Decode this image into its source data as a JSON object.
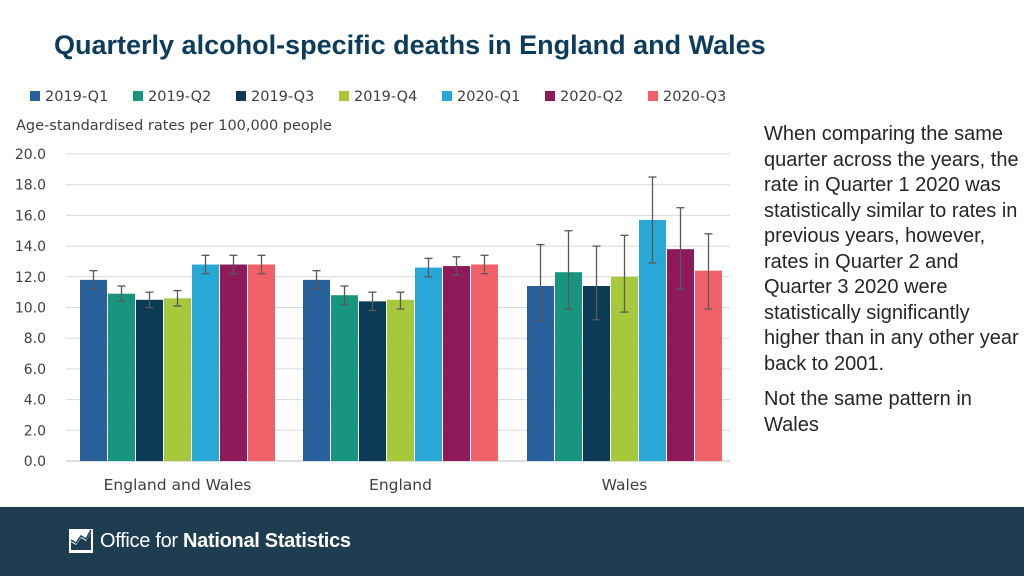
{
  "slide": {
    "title": "Quarterly alcohol-specific deaths in England and Wales"
  },
  "side_text": {
    "paragraph1": "When comparing the same quarter across the years, the rate in Quarter 1 2020 was statistically similar to rates in previous years, however, rates in Quarter 2 and Quarter 3 2020 were statistically significantly higher than in any other year back to 2001.",
    "paragraph2": "Not the same pattern in Wales"
  },
  "footer": {
    "logo_text_regular": "Office for ",
    "logo_text_bold": "National Statistics"
  },
  "colors": {
    "2019-Q1": "#27609a",
    "2019-Q2": "#17957f",
    "2019-Q3": "#0c3b55",
    "2019-Q4": "#a8c83c",
    "2020-Q1": "#27a8d6",
    "2020-Q2": "#8e1a5b",
    "2020-Q3": "#f2616a",
    "footer_bg": "#1e3d51",
    "title": "#0e3d5c"
  },
  "chart_data": {
    "type": "bar",
    "title": "",
    "ylabel": "Age-standardised rates per 100,000 people",
    "xlabel": "",
    "ylim": [
      0,
      20
    ],
    "yticks": [
      "0.0",
      "2.0",
      "4.0",
      "6.0",
      "8.0",
      "10.0",
      "12.0",
      "14.0",
      "16.0",
      "18.0",
      "20.0"
    ],
    "grid": true,
    "legend_position": "top",
    "categories": [
      "England and Wales",
      "England",
      "Wales"
    ],
    "series": [
      {
        "name": "2019-Q1",
        "values": [
          11.8,
          11.8,
          11.4
        ],
        "err_low": [
          11.2,
          11.2,
          9.1
        ],
        "err_high": [
          12.4,
          12.4,
          14.1
        ]
      },
      {
        "name": "2019-Q2",
        "values": [
          10.9,
          10.8,
          12.3
        ],
        "err_low": [
          10.4,
          10.2,
          9.9
        ],
        "err_high": [
          11.4,
          11.4,
          15.0
        ]
      },
      {
        "name": "2019-Q3",
        "values": [
          10.5,
          10.4,
          11.4
        ],
        "err_low": [
          10.0,
          9.8,
          9.2
        ],
        "err_high": [
          11.0,
          11.0,
          14.0
        ]
      },
      {
        "name": "2019-Q4",
        "values": [
          10.6,
          10.5,
          12.0
        ],
        "err_low": [
          10.1,
          9.9,
          9.7
        ],
        "err_high": [
          11.1,
          11.0,
          14.7
        ]
      },
      {
        "name": "2020-Q1",
        "values": [
          12.8,
          12.6,
          15.7
        ],
        "err_low": [
          12.2,
          12.0,
          12.9
        ],
        "err_high": [
          13.4,
          13.2,
          18.5
        ]
      },
      {
        "name": "2020-Q2",
        "values": [
          12.8,
          12.7,
          13.8
        ],
        "err_low": [
          12.2,
          12.1,
          11.2
        ],
        "err_high": [
          13.4,
          13.3,
          16.5
        ]
      },
      {
        "name": "2020-Q3",
        "values": [
          12.8,
          12.8,
          12.4
        ],
        "err_low": [
          12.2,
          12.2,
          9.9
        ],
        "err_high": [
          13.4,
          13.4,
          14.8
        ]
      }
    ]
  }
}
